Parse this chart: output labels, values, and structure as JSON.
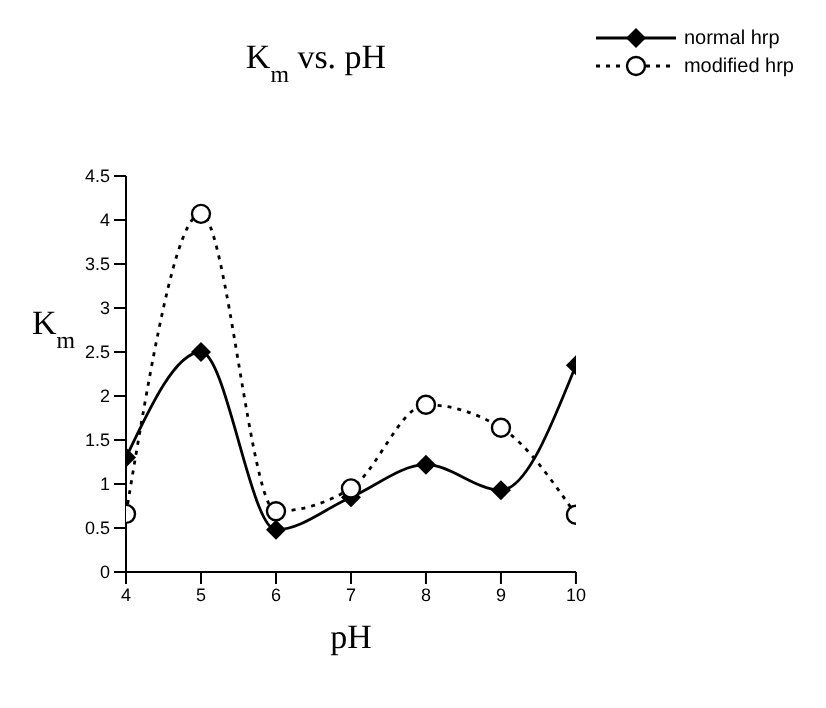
{
  "chart_data": {
    "type": "line",
    "title": "K$_{m}$ vs. pH",
    "xlabel": "pH",
    "ylabel": "K$_{m}$",
    "x": [
      4,
      5,
      6,
      7,
      8,
      9,
      10
    ],
    "series": [
      {
        "name": "normal hrp",
        "color": "#000000",
        "marker": "diamond",
        "line_style": "solid",
        "values": [
          1.3,
          2.5,
          0.48,
          0.85,
          1.22,
          0.93,
          2.35
        ]
      },
      {
        "name": "modified hrp",
        "color": "#000000",
        "marker": "circle",
        "line_style": "dotted",
        "values": [
          0.66,
          4.07,
          0.69,
          0.95,
          1.9,
          1.64,
          0.65
        ]
      }
    ],
    "xlim": [
      4,
      10
    ],
    "xticks": [
      4,
      5,
      6,
      7,
      8,
      9,
      10
    ],
    "ylim": [
      0,
      4.5
    ],
    "yticks": [
      0,
      0.5,
      1,
      1.5,
      2,
      2.5,
      3,
      3.5,
      4,
      4.5
    ],
    "legend": "top right"
  }
}
